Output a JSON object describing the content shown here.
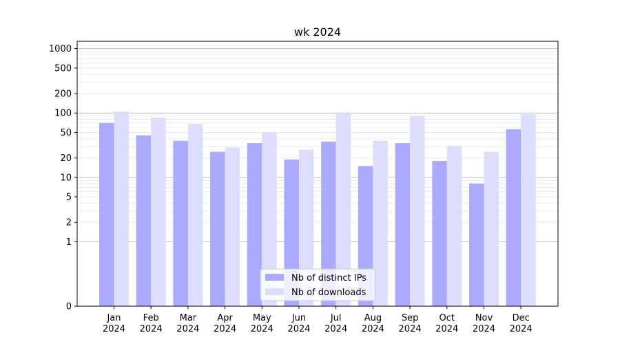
{
  "chart_data": {
    "type": "bar",
    "title": "wk 2024",
    "xlabel": "",
    "ylabel": "",
    "y_scale": "symlog",
    "ylim": [
      0,
      1300
    ],
    "grid": "horizontal major and minor lines",
    "categories": [
      [
        "Jan",
        "2024"
      ],
      [
        "Feb",
        "2024"
      ],
      [
        "Mar",
        "2024"
      ],
      [
        "Apr",
        "2024"
      ],
      [
        "May",
        "2024"
      ],
      [
        "Jun",
        "2024"
      ],
      [
        "Jul",
        "2024"
      ],
      [
        "Aug",
        "2024"
      ],
      [
        "Sep",
        "2024"
      ],
      [
        "Oct",
        "2024"
      ],
      [
        "Nov",
        "2024"
      ],
      [
        "Dec",
        "2024"
      ]
    ],
    "y_ticks": [
      0,
      1,
      2,
      5,
      10,
      20,
      50,
      100,
      200,
      500,
      1000
    ],
    "series": [
      {
        "name": "Nb of distinct IPs",
        "color": "#aaaaff",
        "values": [
          70,
          45,
          37,
          25,
          34,
          19,
          36,
          15,
          34,
          18,
          8,
          56
        ]
      },
      {
        "name": "Nb of downloads",
        "color": "#ddddff",
        "values": [
          105,
          85,
          68,
          29,
          50,
          27,
          97,
          37,
          90,
          31,
          25,
          95
        ]
      }
    ],
    "legend_position": "lower center"
  }
}
